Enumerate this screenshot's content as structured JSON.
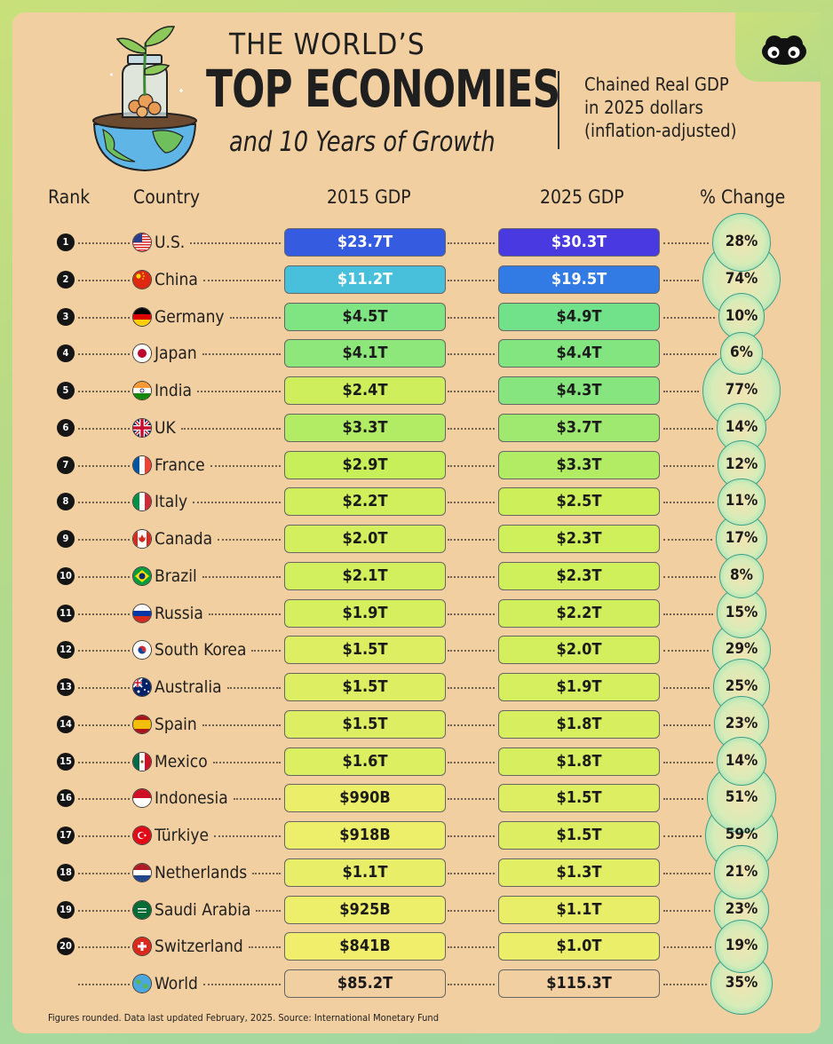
{
  "header": {
    "title_top": "THE WORLD’S",
    "title_main": "TOP ECONOMIES",
    "title_sub": "and 10 Years of Growth",
    "subtitle_lines": [
      "Chained Real GDP",
      "in 2025 dollars",
      "(inflation-adjusted)"
    ]
  },
  "columns": {
    "rank": "Rank",
    "country": "Country",
    "gdp2015": "2015 GDP",
    "gdp2025": "2025 GDP",
    "change": "% Change"
  },
  "chart_data": {
    "type": "table",
    "rows": [
      {
        "rank": "1",
        "country": "U.S.",
        "gdp2015": "$23.7T",
        "gdp2025": "$30.3T",
        "change": "28%",
        "v2015": 23.7,
        "v2025": 30.3,
        "pct": 28
      },
      {
        "rank": "2",
        "country": "China",
        "gdp2015": "$11.2T",
        "gdp2025": "$19.5T",
        "change": "74%",
        "v2015": 11.2,
        "v2025": 19.5,
        "pct": 74
      },
      {
        "rank": "3",
        "country": "Germany",
        "gdp2015": "$4.5T",
        "gdp2025": "$4.9T",
        "change": "10%",
        "v2015": 4.5,
        "v2025": 4.9,
        "pct": 10
      },
      {
        "rank": "4",
        "country": "Japan",
        "gdp2015": "$4.1T",
        "gdp2025": "$4.4T",
        "change": "6%",
        "v2015": 4.1,
        "v2025": 4.4,
        "pct": 6
      },
      {
        "rank": "5",
        "country": "India",
        "gdp2015": "$2.4T",
        "gdp2025": "$4.3T",
        "change": "77%",
        "v2015": 2.4,
        "v2025": 4.3,
        "pct": 77
      },
      {
        "rank": "6",
        "country": "UK",
        "gdp2015": "$3.3T",
        "gdp2025": "$3.7T",
        "change": "14%",
        "v2015": 3.3,
        "v2025": 3.7,
        "pct": 14
      },
      {
        "rank": "7",
        "country": "France",
        "gdp2015": "$2.9T",
        "gdp2025": "$3.3T",
        "change": "12%",
        "v2015": 2.9,
        "v2025": 3.3,
        "pct": 12
      },
      {
        "rank": "8",
        "country": "Italy",
        "gdp2015": "$2.2T",
        "gdp2025": "$2.5T",
        "change": "11%",
        "v2015": 2.2,
        "v2025": 2.5,
        "pct": 11
      },
      {
        "rank": "9",
        "country": "Canada",
        "gdp2015": "$2.0T",
        "gdp2025": "$2.3T",
        "change": "17%",
        "v2015": 2.0,
        "v2025": 2.3,
        "pct": 17
      },
      {
        "rank": "10",
        "country": "Brazil",
        "gdp2015": "$2.1T",
        "gdp2025": "$2.3T",
        "change": "8%",
        "v2015": 2.1,
        "v2025": 2.3,
        "pct": 8
      },
      {
        "rank": "11",
        "country": "Russia",
        "gdp2015": "$1.9T",
        "gdp2025": "$2.2T",
        "change": "15%",
        "v2015": 1.9,
        "v2025": 2.2,
        "pct": 15
      },
      {
        "rank": "12",
        "country": "South Korea",
        "gdp2015": "$1.5T",
        "gdp2025": "$2.0T",
        "change": "29%",
        "v2015": 1.5,
        "v2025": 2.0,
        "pct": 29
      },
      {
        "rank": "13",
        "country": "Australia",
        "gdp2015": "$1.5T",
        "gdp2025": "$1.9T",
        "change": "25%",
        "v2015": 1.5,
        "v2025": 1.9,
        "pct": 25
      },
      {
        "rank": "14",
        "country": "Spain",
        "gdp2015": "$1.5T",
        "gdp2025": "$1.8T",
        "change": "23%",
        "v2015": 1.5,
        "v2025": 1.8,
        "pct": 23
      },
      {
        "rank": "15",
        "country": "Mexico",
        "gdp2015": "$1.6T",
        "gdp2025": "$1.8T",
        "change": "14%",
        "v2015": 1.6,
        "v2025": 1.8,
        "pct": 14
      },
      {
        "rank": "16",
        "country": "Indonesia",
        "gdp2015": "$990B",
        "gdp2025": "$1.5T",
        "change": "51%",
        "v2015": 0.99,
        "v2025": 1.5,
        "pct": 51
      },
      {
        "rank": "17",
        "country": "Türkiye",
        "gdp2015": "$918B",
        "gdp2025": "$1.5T",
        "change": "59%",
        "v2015": 0.918,
        "v2025": 1.5,
        "pct": 59
      },
      {
        "rank": "18",
        "country": "Netherlands",
        "gdp2015": "$1.1T",
        "gdp2025": "$1.3T",
        "change": "21%",
        "v2015": 1.1,
        "v2025": 1.3,
        "pct": 21
      },
      {
        "rank": "19",
        "country": "Saudi Arabia",
        "gdp2015": "$925B",
        "gdp2025": "$1.1T",
        "change": "23%",
        "v2015": 0.925,
        "v2025": 1.1,
        "pct": 23
      },
      {
        "rank": "20",
        "country": "Switzerland",
        "gdp2015": "$841B",
        "gdp2025": "$1.0T",
        "change": "19%",
        "v2015": 0.841,
        "v2025": 1.0,
        "pct": 19
      },
      {
        "rank": "",
        "country": "World",
        "gdp2015": "$85.2T",
        "gdp2025": "$115.3T",
        "change": "35%",
        "v2015": 85.2,
        "v2025": 115.3,
        "pct": 35
      }
    ]
  },
  "flags": [
    "us",
    "china",
    "germany",
    "japan",
    "india",
    "uk",
    "france",
    "italy",
    "canada",
    "brazil",
    "russia",
    "south-korea",
    "australia",
    "spain",
    "mexico",
    "indonesia",
    "turkiye",
    "netherlands",
    "saudi-arabia",
    "switzerland",
    "world-globe"
  ],
  "footer": "Figures rounded. Data last updated February, 2025. Source: International Monetary Fund"
}
